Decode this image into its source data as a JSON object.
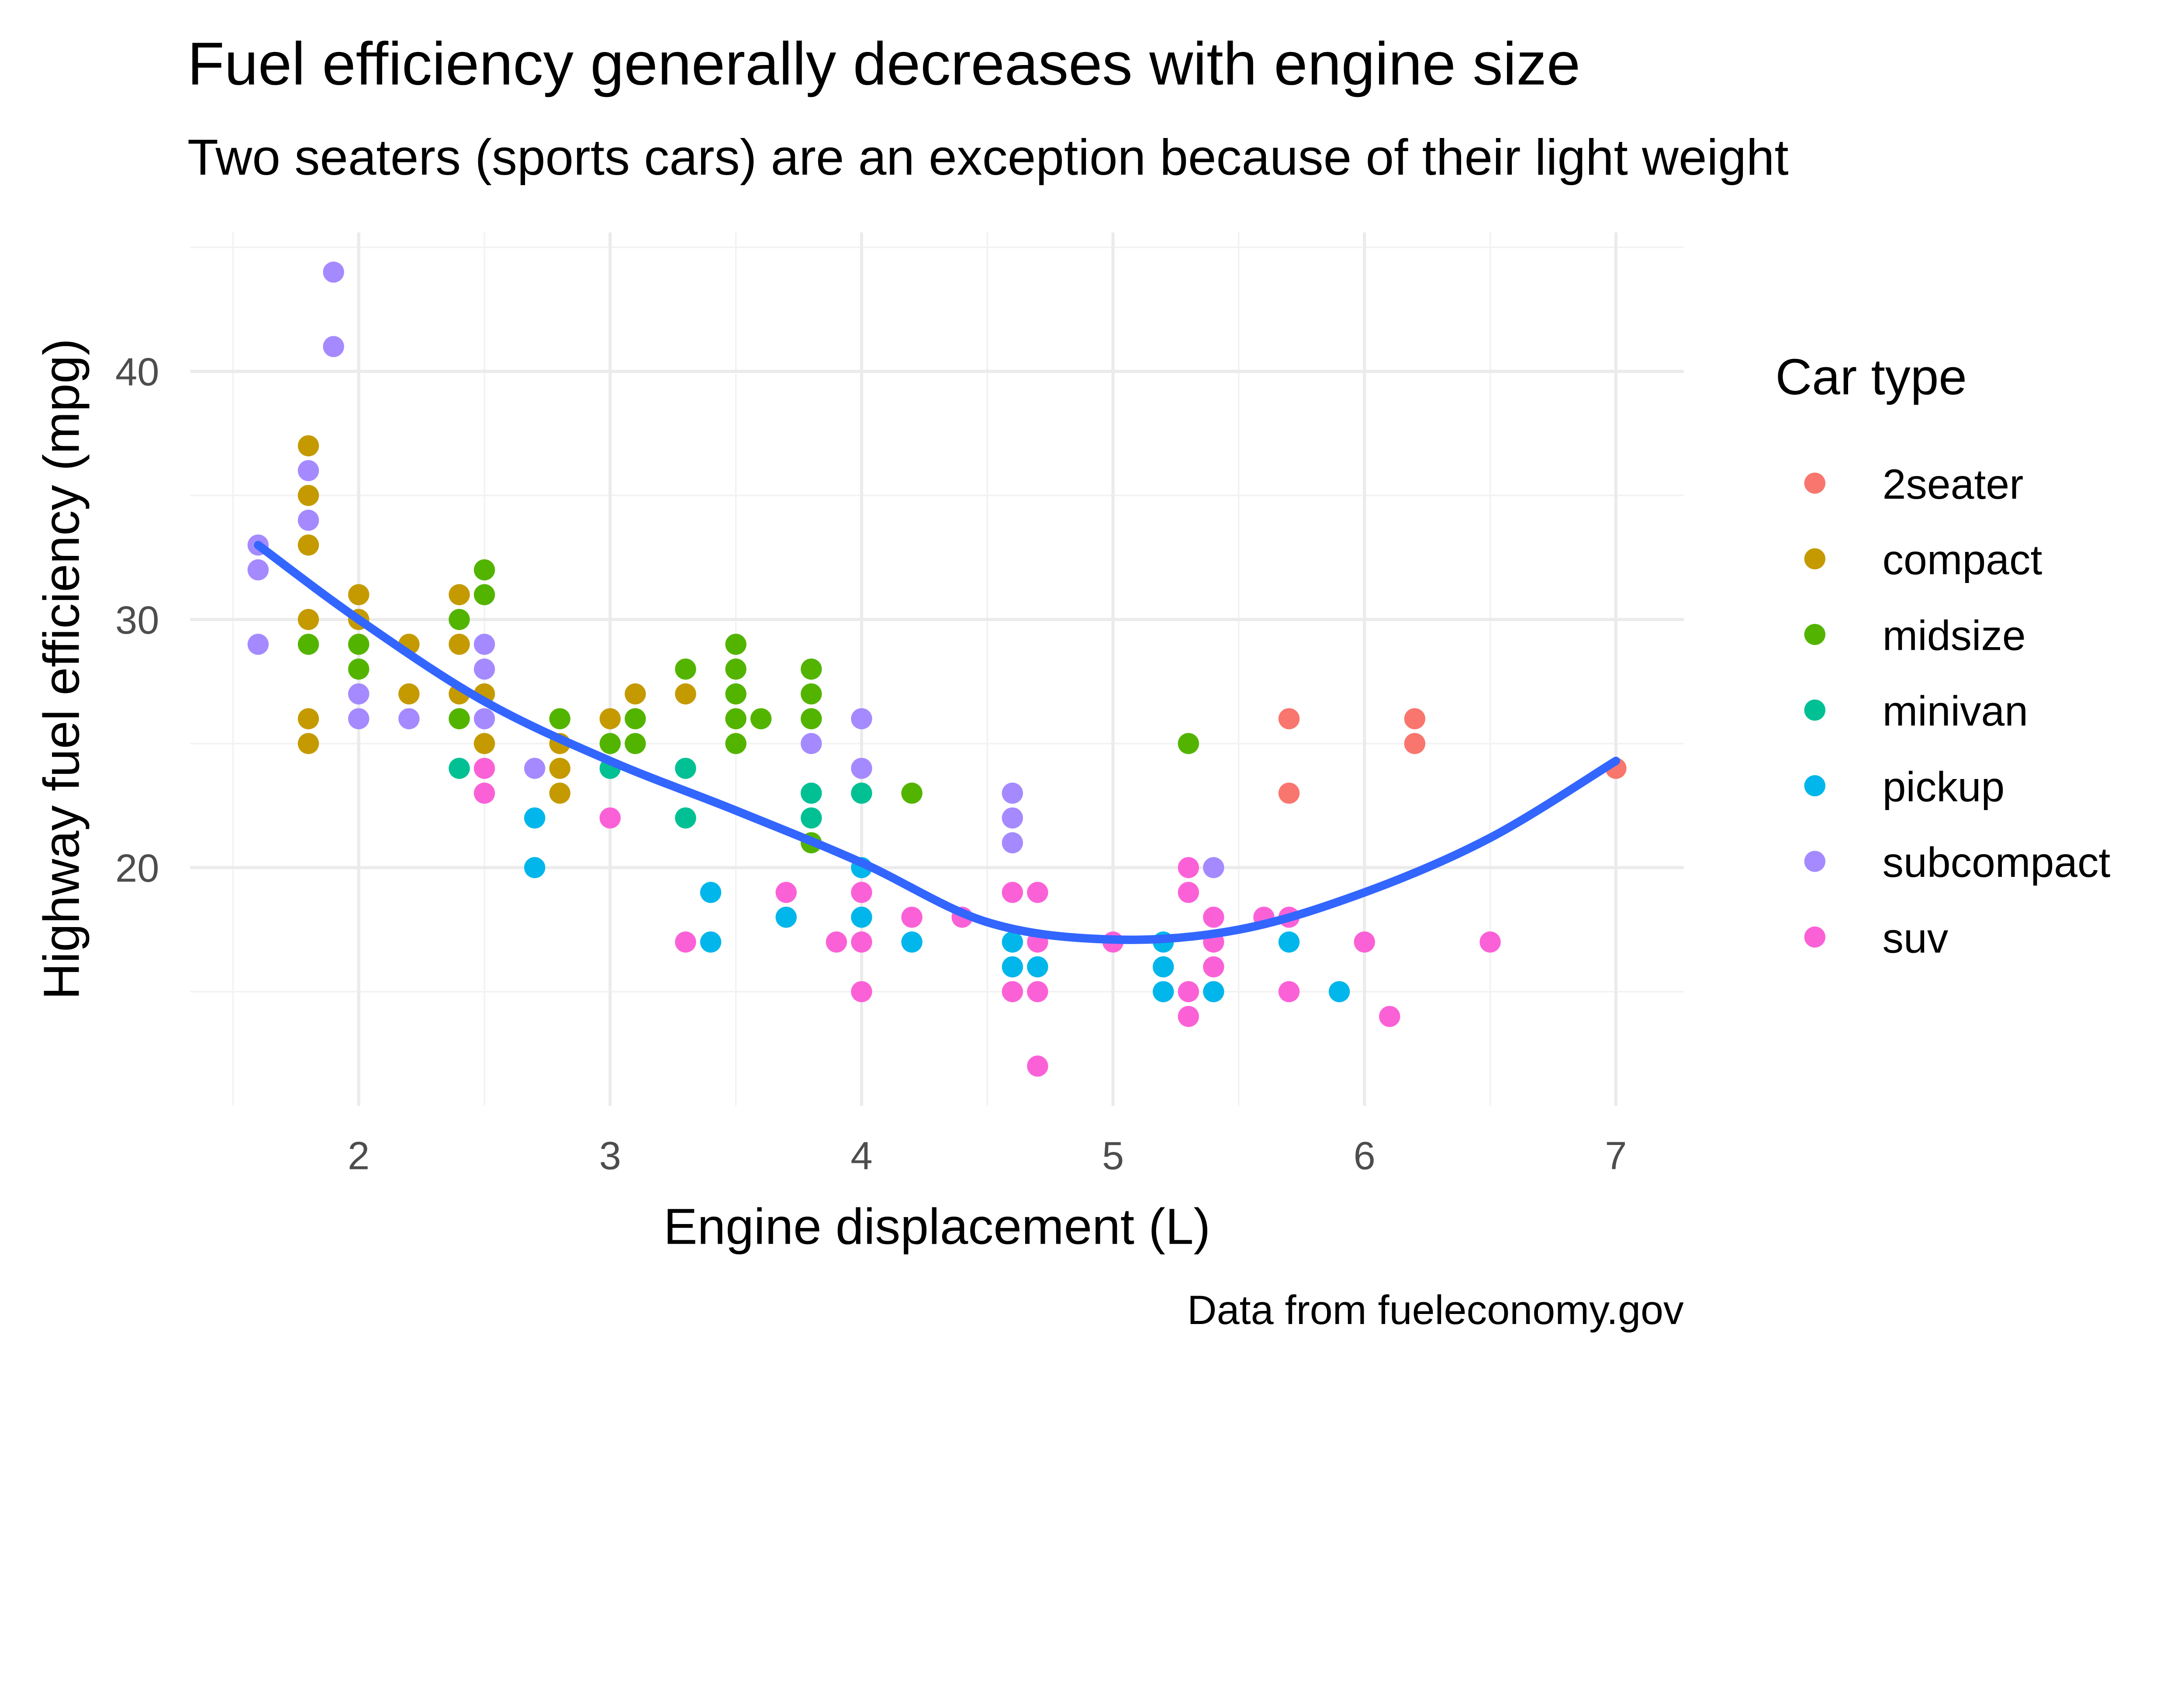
{
  "chart_data": {
    "type": "scatter",
    "title": "Fuel efficiency generally decreases with engine size",
    "subtitle": "Two seaters (sports cars) are an exception because of their light weight",
    "caption": "Data from fueleconomy.gov",
    "xlabel": "Engine displacement (L)",
    "ylabel": "Highway fuel efficiency (mpg)",
    "xlim": [
      1.33,
      7.27
    ],
    "ylim": [
      10.4,
      45.6
    ],
    "x_ticks": [
      "2",
      "3",
      "4",
      "5",
      "6",
      "7"
    ],
    "y_ticks": [
      "20",
      "30",
      "40"
    ],
    "grid": true,
    "legend": {
      "title": "Car type",
      "position": "right"
    },
    "series": [
      {
        "name": "2seater",
        "color": "#F8766D",
        "points": [
          [
            5.7,
            26
          ],
          [
            5.7,
            23
          ],
          [
            6.2,
            26
          ],
          [
            6.2,
            25
          ],
          [
            7,
            24
          ]
        ]
      },
      {
        "name": "compact",
        "color": "#C49A00",
        "points": [
          [
            1.8,
            37
          ],
          [
            1.8,
            35
          ],
          [
            1.8,
            33
          ],
          [
            1.8,
            30
          ],
          [
            1.8,
            26
          ],
          [
            1.8,
            25
          ],
          [
            2,
            31
          ],
          [
            2,
            30
          ],
          [
            2.2,
            29
          ],
          [
            2.2,
            27
          ],
          [
            2.4,
            31
          ],
          [
            2.4,
            29
          ],
          [
            2.4,
            27
          ],
          [
            2.5,
            27
          ],
          [
            2.5,
            25
          ],
          [
            2.8,
            25
          ],
          [
            2.8,
            24
          ],
          [
            2.8,
            23
          ],
          [
            3,
            26
          ],
          [
            3.1,
            27
          ],
          [
            3.3,
            27
          ]
        ]
      },
      {
        "name": "midsize",
        "color": "#53B400",
        "points": [
          [
            1.8,
            29
          ],
          [
            2,
            29
          ],
          [
            2,
            28
          ],
          [
            2.4,
            30
          ],
          [
            2.4,
            26
          ],
          [
            2.5,
            32
          ],
          [
            2.5,
            31
          ],
          [
            2.8,
            26
          ],
          [
            3,
            25
          ],
          [
            3.1,
            26
          ],
          [
            3.1,
            25
          ],
          [
            3.3,
            28
          ],
          [
            3.5,
            29
          ],
          [
            3.5,
            28
          ],
          [
            3.5,
            27
          ],
          [
            3.5,
            26
          ],
          [
            3.5,
            25
          ],
          [
            3.6,
            26
          ],
          [
            3.8,
            28
          ],
          [
            3.8,
            27
          ],
          [
            3.8,
            26
          ],
          [
            3.8,
            21
          ],
          [
            4.2,
            23
          ],
          [
            5.3,
            25
          ]
        ]
      },
      {
        "name": "minivan",
        "color": "#00C094",
        "points": [
          [
            2.4,
            24
          ],
          [
            3,
            24
          ],
          [
            3.3,
            24
          ],
          [
            3.3,
            22
          ],
          [
            3.8,
            23
          ],
          [
            3.8,
            22
          ],
          [
            4,
            23
          ]
        ]
      },
      {
        "name": "pickup",
        "color": "#00B6EB",
        "points": [
          [
            2.7,
            22
          ],
          [
            2.7,
            20
          ],
          [
            3.4,
            19
          ],
          [
            3.4,
            17
          ],
          [
            3.7,
            18
          ],
          [
            4,
            20
          ],
          [
            4,
            18
          ],
          [
            4.2,
            17
          ],
          [
            4.6,
            17
          ],
          [
            4.6,
            16
          ],
          [
            4.7,
            16
          ],
          [
            5.2,
            17
          ],
          [
            5.2,
            16
          ],
          [
            5.2,
            15
          ],
          [
            5.4,
            15
          ],
          [
            5.7,
            17
          ],
          [
            5.9,
            15
          ]
        ]
      },
      {
        "name": "subcompact",
        "color": "#A58AFF",
        "points": [
          [
            1.6,
            33
          ],
          [
            1.6,
            32
          ],
          [
            1.6,
            29
          ],
          [
            1.8,
            36
          ],
          [
            1.8,
            34
          ],
          [
            1.9,
            44
          ],
          [
            1.9,
            41
          ],
          [
            2,
            27
          ],
          [
            2,
            26
          ],
          [
            2.2,
            26
          ],
          [
            2.5,
            29
          ],
          [
            2.5,
            28
          ],
          [
            2.5,
            26
          ],
          [
            2.7,
            24
          ],
          [
            3.8,
            25
          ],
          [
            4,
            26
          ],
          [
            4,
            24
          ],
          [
            4.6,
            23
          ],
          [
            4.6,
            22
          ],
          [
            4.6,
            21
          ],
          [
            5.4,
            20
          ]
        ]
      },
      {
        "name": "suv",
        "color": "#FB61D7",
        "points": [
          [
            2.5,
            24
          ],
          [
            2.5,
            23
          ],
          [
            3,
            22
          ],
          [
            3.3,
            17
          ],
          [
            3.7,
            19
          ],
          [
            3.9,
            17
          ],
          [
            4,
            19
          ],
          [
            4,
            17
          ],
          [
            4,
            15
          ],
          [
            4.2,
            18
          ],
          [
            4.4,
            18
          ],
          [
            4.6,
            19
          ],
          [
            4.6,
            15
          ],
          [
            4.7,
            19
          ],
          [
            4.7,
            17
          ],
          [
            4.7,
            15
          ],
          [
            4.7,
            12
          ],
          [
            5,
            17
          ],
          [
            5.3,
            20
          ],
          [
            5.3,
            19
          ],
          [
            5.3,
            15
          ],
          [
            5.3,
            14
          ],
          [
            5.4,
            18
          ],
          [
            5.4,
            17
          ],
          [
            5.4,
            16
          ],
          [
            5.6,
            18
          ],
          [
            5.7,
            18
          ],
          [
            5.7,
            15
          ],
          [
            6,
            17
          ],
          [
            6.1,
            14
          ],
          [
            6.5,
            17
          ]
        ]
      }
    ],
    "smooth": {
      "color": "#3366FF",
      "points": [
        [
          1.6,
          33
        ],
        [
          2,
          30
        ],
        [
          2.5,
          26.7
        ],
        [
          3,
          24.3
        ],
        [
          3.5,
          22.3
        ],
        [
          4,
          20.2
        ],
        [
          4.5,
          17.8
        ],
        [
          5,
          17.1
        ],
        [
          5.5,
          17.5
        ],
        [
          6,
          19
        ],
        [
          6.5,
          21.2
        ],
        [
          7,
          24.3
        ]
      ]
    }
  }
}
